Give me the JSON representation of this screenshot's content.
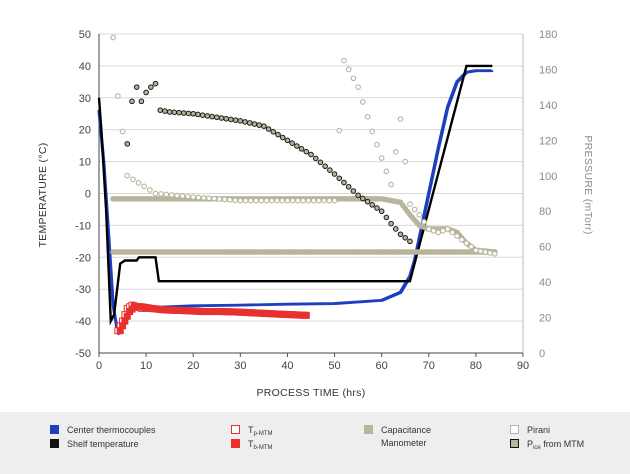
{
  "chart_data": {
    "type": "line",
    "xlabel": "PROCESS TIME (hrs)",
    "ylabel_left": "TEMPERATURE (°C)",
    "ylabel_right": "PRESSURE (mTorr)",
    "xlim": [
      0,
      90
    ],
    "ylim_left": [
      -50,
      50
    ],
    "ylim_right": [
      0,
      180
    ],
    "x_ticks": [
      "0",
      "10",
      "20",
      "30",
      "40",
      "50",
      "60",
      "70",
      "80",
      "90"
    ],
    "y_left_ticks": [
      "-50",
      "-40",
      "-30",
      "-20",
      "-10",
      "0",
      "10",
      "20",
      "30",
      "40",
      "50"
    ],
    "y_right_ticks": [
      "0",
      "20",
      "40",
      "60",
      "80",
      "100",
      "120",
      "140",
      "160",
      "180"
    ],
    "grid": "horizontal",
    "series": [
      {
        "name": "Center thermocouples",
        "axis": "left",
        "color": "#1f3fbf",
        "style": "line",
        "x": [
          0,
          1,
          2,
          3,
          4,
          5,
          6,
          8,
          10,
          15,
          20,
          30,
          40,
          50,
          60,
          64,
          66,
          67,
          68,
          70,
          72,
          74,
          76,
          78,
          80,
          83.5
        ],
        "y": [
          26,
          10,
          -12,
          -35,
          -44,
          -42,
          -37,
          -36,
          -35.8,
          -35.5,
          -35.2,
          -35,
          -34.7,
          -34.5,
          -33.5,
          -31,
          -26,
          -21,
          -14,
          0,
          14,
          27,
          35,
          38,
          38.5,
          38.5
        ]
      },
      {
        "name": "Shelf temperature",
        "axis": "left",
        "color": "#000000",
        "style": "step",
        "x": [
          0,
          0.5,
          1.5,
          2.5,
          3.2,
          4.5,
          5.5,
          8,
          8.5,
          12,
          12.7,
          66,
          78,
          83.5
        ],
        "y": [
          30,
          20,
          -5,
          -40,
          -38,
          -22,
          -21,
          -21,
          -20,
          -20,
          -27.5,
          -27.5,
          40,
          40
        ]
      },
      {
        "name": "Tp-MTM",
        "axis": "left",
        "color": "#e8302f",
        "style": "open-square",
        "x": [
          4,
          5,
          6,
          7,
          8,
          9,
          10
        ],
        "y": [
          -43,
          -40,
          -36,
          -35,
          -35.5,
          -36,
          -36
        ]
      },
      {
        "name": "Tb-MTM",
        "axis": "left",
        "color": "#e8302f",
        "style": "filled-square",
        "x": [
          4.5,
          5.5,
          6.5,
          7.5,
          9,
          11,
          14,
          18,
          22,
          26,
          30,
          34,
          38,
          41,
          44
        ],
        "y": [
          -43,
          -40,
          -37,
          -35.5,
          -35.5,
          -36,
          -36.5,
          -36.7,
          -37,
          -37,
          -37.2,
          -37.5,
          -37.8,
          -38,
          -38.2
        ]
      },
      {
        "name": "Capacitance Manometer",
        "axis": "right",
        "color": "#b9b59c",
        "style": "filled-circle",
        "x": [
          3,
          6,
          10,
          20,
          30,
          40,
          50,
          60,
          65,
          70,
          75,
          80,
          84
        ],
        "y": [
          57,
          57,
          57,
          57,
          57,
          57,
          57,
          57,
          57,
          57,
          57,
          57,
          57
        ]
      },
      {
        "name": "Capacitance Manometer (upper)",
        "axis": "right",
        "color": "#b9b59c",
        "style": "filled-circle",
        "x": [
          3,
          10,
          20,
          30,
          40,
          50,
          55,
          60,
          64,
          66,
          68,
          70,
          72,
          74,
          76,
          78,
          80,
          84
        ],
        "y": [
          87,
          87,
          87,
          87,
          87,
          87,
          87,
          87,
          85,
          78,
          72,
          70,
          70,
          70,
          68,
          62,
          58,
          57
        ]
      },
      {
        "name": "Pirani",
        "axis": "right",
        "color": "#b9b59c",
        "style": "open-circle",
        "x": [
          3,
          4,
          5,
          6,
          12,
          20,
          30,
          40,
          50,
          52,
          55,
          58,
          60,
          62,
          64,
          66,
          68,
          70,
          72,
          74,
          76,
          78,
          80,
          84
        ],
        "y": [
          178,
          145,
          125,
          100,
          90,
          88,
          86,
          86,
          86,
          165,
          150,
          125,
          110,
          95,
          132,
          84,
          78,
          70,
          68,
          70,
          66,
          62,
          58,
          56
        ]
      },
      {
        "name": "Pice from MTM",
        "axis": "right",
        "color": "#b9b59c",
        "stroke": "#1a1a1a",
        "style": "open-circle",
        "x": [
          6,
          7,
          8,
          9,
          10,
          11,
          12,
          13,
          15,
          20,
          25,
          30,
          35,
          40,
          45,
          50,
          55,
          60,
          62,
          64,
          66
        ],
        "y": [
          118,
          142,
          150,
          142,
          147,
          150,
          152,
          137,
          136,
          135,
          133,
          131,
          128,
          120,
          112,
          101,
          89,
          80,
          73,
          67,
          63
        ]
      }
    ],
    "legend": [
      {
        "label": "Center thermocouples",
        "label2": "",
        "swatch": "filled",
        "color": "#1f3fbf"
      },
      {
        "label": "Shelf temperature",
        "label2": "",
        "swatch": "filled",
        "color": "#111111"
      },
      {
        "label": "T",
        "sub": "p-MTM",
        "swatch": "open",
        "color": "#e8302f"
      },
      {
        "label": "T",
        "sub": "b-MTM",
        "swatch": "filled",
        "color": "#e8302f"
      },
      {
        "label": "Capacitance",
        "label2": "Manometer",
        "swatch": "filled",
        "color": "#b9b59c"
      },
      {
        "label": "Pirani",
        "label2": "",
        "swatch": "open",
        "color": "#b9b59c"
      },
      {
        "label": "P",
        "sub": "ice",
        "label_rest": " from MTM",
        "swatch": "outlined",
        "color": "#b9b59c"
      }
    ]
  }
}
